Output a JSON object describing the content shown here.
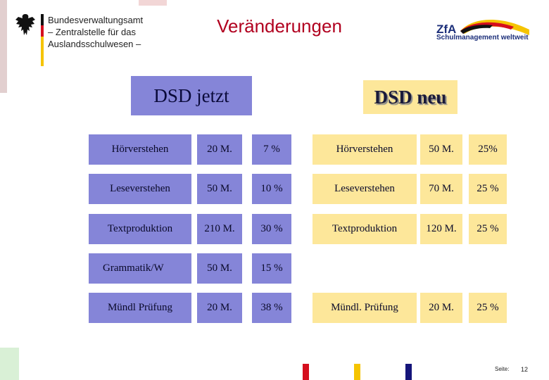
{
  "header": {
    "agency_lines": [
      "Bundesverwaltungsamt",
      "– Zentralstelle für das",
      "Auslandsschulwesen –"
    ],
    "title": "Veränderungen",
    "logo_text": "ZfA",
    "logo_subtitle": "Schulmanagement weltweit"
  },
  "headings": {
    "old": "DSD jetzt",
    "new": "DSD neu"
  },
  "old_table": [
    {
      "label": "Hörverstehen",
      "minutes": "20 M.",
      "percent": "7 %"
    },
    {
      "label": "Leseverstehen",
      "minutes": "50 M.",
      "percent": "10 %"
    },
    {
      "label": "Textproduktion",
      "minutes": "210 M.",
      "percent": "30 %"
    },
    {
      "label": "Grammatik/W",
      "minutes": "50 M.",
      "percent": "15 %"
    },
    {
      "label": "Mündl  Prüfung",
      "minutes": "20 M.",
      "percent": "38 %"
    }
  ],
  "new_table": [
    {
      "label": "Hörverstehen",
      "minutes": "50 M.",
      "percent": "25%"
    },
    {
      "label": "Leseverstehen",
      "minutes": "70 M.",
      "percent": "25 %"
    },
    {
      "label": "Textproduktion",
      "minutes": "120 M.",
      "percent": "25 %"
    },
    {
      "label": "Mündl. Prüfung",
      "minutes": "20 M.",
      "percent": "25 %"
    }
  ],
  "footer": {
    "page_label": "Seite:",
    "page_number": "12"
  },
  "colors": {
    "old_cell": "#8585d8",
    "new_cell": "#fde79a",
    "title": "#b1001f",
    "footer_red": "#d50f1e",
    "footer_yellow": "#f5c400",
    "footer_blue": "#15157a"
  }
}
